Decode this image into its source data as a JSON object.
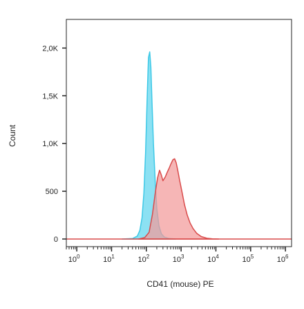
{
  "chart_data": {
    "type": "area",
    "xlabel": "CD41 (mouse) PE",
    "ylabel": "Count",
    "x_scale": "log",
    "xlim": [
      0.5,
      1500000
    ],
    "ylim": [
      -80,
      2300
    ],
    "x_ticks": [
      {
        "base": "10",
        "exp": "0",
        "value": 1
      },
      {
        "base": "10",
        "exp": "1",
        "value": 10
      },
      {
        "base": "10",
        "exp": "2",
        "value": 100
      },
      {
        "base": "10",
        "exp": "3",
        "value": 1000
      },
      {
        "base": "10",
        "exp": "4",
        "value": 10000
      },
      {
        "base": "10",
        "exp": "5",
        "value": 100000
      },
      {
        "base": "10",
        "exp": "6",
        "value": 1000000
      }
    ],
    "y_ticks": [
      {
        "label": "0",
        "value": 0
      },
      {
        "label": "500",
        "value": 500
      },
      {
        "label": "1,0K",
        "value": 1000
      },
      {
        "label": "1,5K",
        "value": 1500
      },
      {
        "label": "2,0K",
        "value": 2000
      }
    ],
    "grid": false,
    "series": [
      {
        "color": "#3cc8e6",
        "fill": "#5fd6ef",
        "x": [
          20,
          40,
          55,
          65,
          75,
          85,
          95,
          105,
          115,
          125,
          135,
          145,
          160,
          180,
          200,
          230,
          270,
          330,
          450,
          700
        ],
        "y": [
          0,
          5,
          30,
          90,
          220,
          480,
          900,
          1450,
          1900,
          1960,
          1800,
          1450,
          1000,
          600,
          320,
          140,
          55,
          20,
          5,
          0
        ]
      },
      {
        "color": "#d94a4a",
        "fill": "#f29a9a",
        "x": [
          60,
          90,
          120,
          150,
          180,
          210,
          240,
          270,
          300,
          350,
          400,
          450,
          500,
          580,
          650,
          720,
          800,
          900,
          1050,
          1250,
          1500,
          1800,
          2200,
          2800,
          3800,
          5500,
          8000,
          12000
        ],
        "y": [
          0,
          15,
          70,
          260,
          480,
          640,
          720,
          670,
          610,
          650,
          700,
          740,
          780,
          830,
          840,
          800,
          720,
          620,
          500,
          360,
          250,
          170,
          110,
          60,
          25,
          8,
          2,
          0
        ]
      }
    ]
  }
}
